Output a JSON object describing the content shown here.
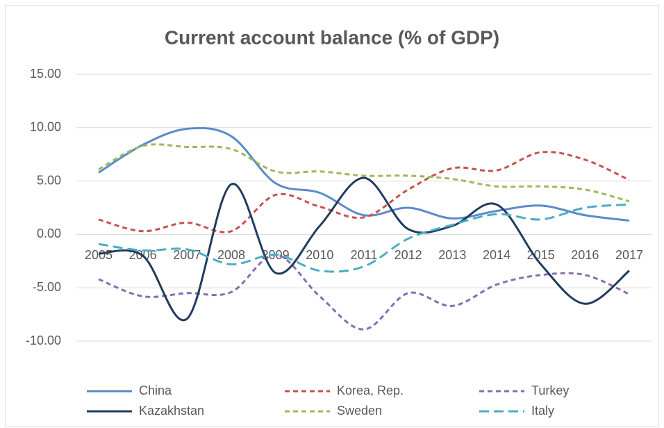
{
  "chart_data": {
    "type": "line",
    "title": "Current account balance (% of GDP)",
    "categories": [
      "2005",
      "2006",
      "2007",
      "2008",
      "2009",
      "2010",
      "2011",
      "2012",
      "2013",
      "2014",
      "2015",
      "2016",
      "2017"
    ],
    "ylim": [
      -10,
      15
    ],
    "yticks": [
      {
        "value": -10,
        "label": "-10.00"
      },
      {
        "value": -5,
        "label": "-5.00"
      },
      {
        "value": 0,
        "label": "0.00"
      },
      {
        "value": 5,
        "label": "5.00"
      },
      {
        "value": 10,
        "label": "10.00"
      },
      {
        "value": 15,
        "label": "15.00"
      }
    ],
    "grid": true,
    "smooth": true,
    "legend": "bottom",
    "series": [
      {
        "name": "China",
        "color": "#5b8bc9",
        "style": "solid",
        "values": [
          5.8,
          8.4,
          9.9,
          9.2,
          4.8,
          3.9,
          1.8,
          2.5,
          1.5,
          2.2,
          2.7,
          1.8,
          1.3
        ]
      },
      {
        "name": "Korea, Rep.",
        "color": "#c9504d",
        "style": "dashed",
        "values": [
          1.4,
          0.3,
          1.1,
          0.3,
          3.7,
          2.6,
          1.6,
          4.2,
          6.2,
          6.0,
          7.7,
          7.0,
          5.1
        ]
      },
      {
        "name": "Turkey",
        "color": "#8a6bb0",
        "style": "dashed",
        "values": [
          -4.2,
          -5.8,
          -5.5,
          -5.4,
          -1.9,
          -5.8,
          -8.9,
          -5.5,
          -6.7,
          -4.7,
          -3.8,
          -3.8,
          -5.6
        ]
      },
      {
        "name": "Kazakhstan",
        "color": "#213c5e",
        "style": "solid",
        "values": [
          -1.8,
          -2.0,
          -7.9,
          4.7,
          -3.6,
          0.8,
          5.3,
          0.5,
          0.8,
          2.8,
          -2.8,
          -6.5,
          -3.4
        ]
      },
      {
        "name": "Sweden",
        "color": "#9bbb59",
        "style": "dashed",
        "values": [
          6.1,
          8.3,
          8.2,
          8.0,
          5.9,
          5.9,
          5.5,
          5.5,
          5.2,
          4.5,
          4.5,
          4.2,
          3.1
        ]
      },
      {
        "name": "Italy",
        "color": "#4bacc6",
        "style": "longdash",
        "values": [
          -0.9,
          -1.5,
          -1.4,
          -2.8,
          -1.9,
          -3.4,
          -3.0,
          -0.4,
          0.9,
          1.9,
          1.4,
          2.5,
          2.8
        ]
      }
    ]
  }
}
